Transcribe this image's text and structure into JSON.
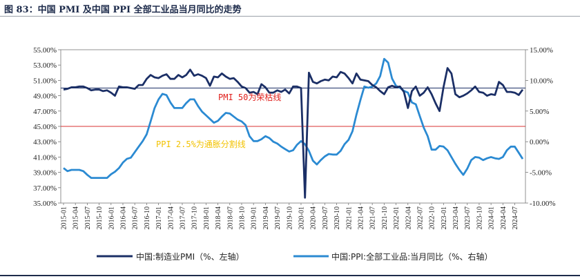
{
  "figure": {
    "title": "图 83：中国 PMI 及中国 PPI 全部工业品当月同比的走势"
  },
  "chart_data": {
    "type": "line",
    "x": [
      "2015-01",
      "2015-02",
      "2015-03",
      "2015-04",
      "2015-05",
      "2015-06",
      "2015-07",
      "2015-08",
      "2015-09",
      "2015-10",
      "2015-11",
      "2015-12",
      "2016-01",
      "2016-02",
      "2016-03",
      "2016-04",
      "2016-05",
      "2016-06",
      "2016-07",
      "2016-08",
      "2016-09",
      "2016-10",
      "2016-11",
      "2016-12",
      "2017-01",
      "2017-02",
      "2017-03",
      "2017-04",
      "2017-05",
      "2017-06",
      "2017-07",
      "2017-08",
      "2017-09",
      "2017-10",
      "2017-11",
      "2017-12",
      "2018-01",
      "2018-02",
      "2018-03",
      "2018-04",
      "2018-05",
      "2018-06",
      "2018-07",
      "2018-08",
      "2018-09",
      "2018-10",
      "2018-11",
      "2018-12",
      "2019-01",
      "2019-02",
      "2019-03",
      "2019-04",
      "2019-05",
      "2019-06",
      "2019-07",
      "2019-08",
      "2019-09",
      "2019-10",
      "2019-11",
      "2019-12",
      "2020-01",
      "2020-02",
      "2020-03",
      "2020-04",
      "2020-05",
      "2020-06",
      "2020-07",
      "2020-08",
      "2020-09",
      "2020-10",
      "2020-11",
      "2020-12",
      "2021-01",
      "2021-02",
      "2021-03",
      "2021-04",
      "2021-05",
      "2021-06",
      "2021-07",
      "2021-08",
      "2021-09",
      "2021-10",
      "2021-11",
      "2021-12",
      "2022-01",
      "2022-02",
      "2022-03",
      "2022-04",
      "2022-05",
      "2022-06",
      "2022-07",
      "2022-08",
      "2022-09",
      "2022-10",
      "2022-11",
      "2022-12",
      "2023-01",
      "2023-02",
      "2023-03",
      "2023-04",
      "2023-05",
      "2023-06",
      "2023-07",
      "2023-08",
      "2023-09",
      "2023-10",
      "2023-11",
      "2023-12",
      "2024-01",
      "2024-02",
      "2024-03",
      "2024-04",
      "2024-05",
      "2024-06",
      "2024-07",
      "2024-08",
      "2024-09"
    ],
    "x_tick_labels": [
      "2015-01",
      "2015-04",
      "2015-07",
      "2015-10",
      "2016-01",
      "2016-04",
      "2016-07",
      "2016-10",
      "2017-01",
      "2017-04",
      "2017-07",
      "2017-10",
      "2018-01",
      "2018-04",
      "2018-07",
      "2018-10",
      "2019-01",
      "2019-04",
      "2019-07",
      "2019-10",
      "2020-01",
      "2020-04",
      "2020-07",
      "2020-10",
      "2021-01",
      "2021-04",
      "2021-07",
      "2021-10",
      "2022-01",
      "2022-04",
      "2022-07",
      "2022-10",
      "2023-01",
      "2023-04",
      "2023-07",
      "2023-10",
      "2024-01",
      "2024-04",
      "2024-07"
    ],
    "y_left": {
      "ylim": [
        35,
        55
      ],
      "ticks": [
        "35.00%",
        "37.00%",
        "39.00%",
        "41.00%",
        "43.00%",
        "45.00%",
        "47.00%",
        "49.00%",
        "51.00%",
        "53.00%",
        "55.00%"
      ]
    },
    "y_right": {
      "ylim": [
        -10,
        15
      ],
      "ticks": [
        "-10.00%",
        "-5.00%",
        "0.00%",
        "5.00%",
        "10.00%",
        "15.00%"
      ]
    },
    "series": [
      {
        "name": "中国:制造业PMI（%、左轴）",
        "axis": "left",
        "color": "#1b2f66",
        "values": [
          49.8,
          49.9,
          50.1,
          50.1,
          50.2,
          50.2,
          50.0,
          49.7,
          49.8,
          49.8,
          49.6,
          49.7,
          49.4,
          49.0,
          50.2,
          50.1,
          50.1,
          50.0,
          49.9,
          50.4,
          50.4,
          51.2,
          51.7,
          51.4,
          51.3,
          51.6,
          51.8,
          51.2,
          51.2,
          51.7,
          51.4,
          51.7,
          52.4,
          51.6,
          51.8,
          51.6,
          51.3,
          50.3,
          51.5,
          51.4,
          51.9,
          51.5,
          51.2,
          51.3,
          50.8,
          50.2,
          50.0,
          49.4,
          49.5,
          49.2,
          50.5,
          50.1,
          49.4,
          49.4,
          49.7,
          49.5,
          49.8,
          49.3,
          50.2,
          50.2,
          50.0,
          35.7,
          52.0,
          50.8,
          50.6,
          50.9,
          51.1,
          51.0,
          51.5,
          51.4,
          52.1,
          51.9,
          51.3,
          50.6,
          51.9,
          51.1,
          51.0,
          50.9,
          50.4,
          50.1,
          49.6,
          49.2,
          50.1,
          50.3,
          50.1,
          50.2,
          49.5,
          47.4,
          49.6,
          50.2,
          49.0,
          49.4,
          50.1,
          49.2,
          48.0,
          47.0,
          50.1,
          52.6,
          51.9,
          49.2,
          48.8,
          49.0,
          49.3,
          49.7,
          50.2,
          49.5,
          49.4,
          49.0,
          49.2,
          49.1,
          50.8,
          50.4,
          49.5,
          49.5,
          49.4,
          49.1,
          49.8
        ]
      },
      {
        "name": "中国:PPI:全部工业品:当月同比（%、右轴）",
        "axis": "right",
        "color": "#2b8ad2",
        "values": [
          -4.3,
          -4.8,
          -4.6,
          -4.6,
          -4.6,
          -4.8,
          -5.4,
          -5.9,
          -5.9,
          -5.9,
          -5.9,
          -5.9,
          -5.3,
          -4.9,
          -4.3,
          -3.4,
          -2.8,
          -2.6,
          -1.7,
          -0.8,
          0.1,
          1.2,
          3.3,
          5.5,
          6.9,
          7.8,
          7.6,
          6.4,
          5.5,
          5.5,
          5.5,
          6.3,
          6.9,
          6.9,
          5.8,
          4.9,
          4.3,
          3.7,
          3.1,
          3.4,
          4.1,
          4.7,
          4.6,
          4.1,
          3.6,
          3.3,
          2.7,
          0.9,
          0.1,
          0.1,
          0.4,
          0.9,
          0.6,
          0.0,
          -0.3,
          -0.8,
          -1.2,
          -1.6,
          -1.4,
          -0.5,
          0.1,
          -0.4,
          -1.5,
          -3.1,
          -3.7,
          -3.0,
          -2.4,
          -2.0,
          -2.1,
          -2.1,
          -1.5,
          -0.4,
          0.3,
          1.7,
          4.4,
          6.8,
          9.0,
          8.8,
          9.0,
          9.5,
          10.7,
          13.5,
          12.9,
          10.3,
          9.1,
          8.8,
          8.3,
          8.0,
          6.4,
          6.1,
          4.2,
          2.3,
          0.9,
          -1.3,
          -1.3,
          -0.7,
          -0.8,
          -1.4,
          -2.5,
          -3.6,
          -4.6,
          -5.4,
          -4.4,
          -3.0,
          -2.5,
          -2.6,
          -3.0,
          -2.7,
          -2.5,
          -2.7,
          -2.8,
          -2.5,
          -1.4,
          -0.8,
          -0.8,
          -1.8,
          -2.8
        ]
      }
    ],
    "reference_lines": [
      {
        "axis": "left",
        "value": 50,
        "color": "#1b2f66"
      },
      {
        "axis": "right",
        "value": 2.5,
        "color": "#d83030"
      }
    ],
    "annotations": [
      {
        "text": "PMI 50为荣枯线",
        "color": "#e0201d"
      },
      {
        "text": "PPI 2.5%为通胀分割线",
        "color": "#f2c200"
      }
    ],
    "legend": {
      "placement": "bottom"
    },
    "grid": false
  }
}
